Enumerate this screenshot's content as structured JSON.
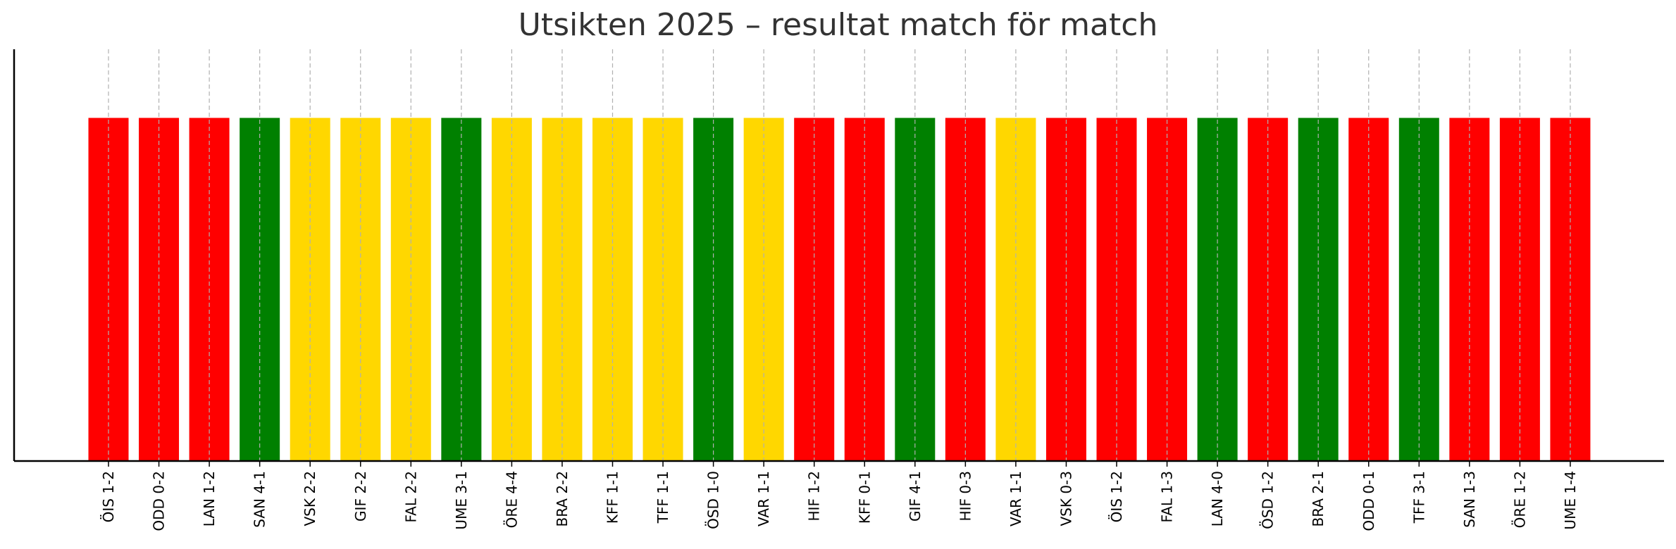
{
  "chart_data": {
    "type": "bar",
    "title": "Utsikten 2025 – resultat match för match",
    "xlabel": "",
    "ylabel": "",
    "ylim": [
      0,
      1.2
    ],
    "grid": {
      "x": true,
      "y": false
    },
    "categories": [
      "ÖIS 1-2",
      "ODD 0-2",
      "LAN 1-2",
      "SAN 4-1",
      "VSK 2-2",
      "GIF 2-2",
      "FAL 2-2",
      "UME 3-1",
      "ÖRE 4-4",
      "BRA 2-2",
      "KFF 1-1",
      "TFF 1-1",
      "ÖSD 1-0",
      "VAR 1-1",
      "HIF 1-2",
      "KFF 0-1",
      "GIF 4-1",
      "HIF 0-3",
      "VAR 1-1",
      "VSK 0-3",
      "ÖIS 1-2",
      "FAL 1-3",
      "LAN 4-0",
      "ÖSD 1-2",
      "BRA 2-1",
      "ODD 0-1",
      "TFF 3-1",
      "SAN 1-3",
      "ÖRE 1-2",
      "UME 1-4"
    ],
    "values": [
      1,
      1,
      1,
      1,
      1,
      1,
      1,
      1,
      1,
      1,
      1,
      1,
      1,
      1,
      1,
      1,
      1,
      1,
      1,
      1,
      1,
      1,
      1,
      1,
      1,
      1,
      1,
      1,
      1,
      1
    ],
    "results": [
      "loss",
      "loss",
      "loss",
      "win",
      "draw",
      "draw",
      "draw",
      "win",
      "draw",
      "draw",
      "draw",
      "draw",
      "win",
      "draw",
      "loss",
      "loss",
      "win",
      "loss",
      "draw",
      "loss",
      "loss",
      "loss",
      "win",
      "loss",
      "win",
      "loss",
      "win",
      "loss",
      "loss",
      "loss"
    ],
    "result_colors": {
      "win": "#008000",
      "draw": "#FFD700",
      "loss": "#FF0000"
    },
    "axis_color": "#000000",
    "grid_color": "#b0b0b0"
  }
}
